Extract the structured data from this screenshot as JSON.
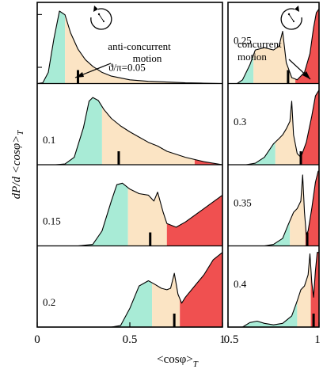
{
  "figure": {
    "ylabel": "dP/d <cosφ>",
    "ylabel_sub": "T",
    "xlabel": "<cosφ>",
    "xlabel_sub": "T"
  },
  "colors": {
    "region_low": "#a8ebd6",
    "region_mid": "#fbe4c4",
    "region_high": "#f05050",
    "line": "#000000"
  },
  "annotations": {
    "anti": [
      "anti-concurrent",
      "motion"
    ],
    "concurrent": [
      "concurrent",
      "motion"
    ]
  },
  "icons": {
    "left": "counterclockwise-rotation-icon",
    "right": "clockwise-rotation-icon"
  },
  "chart_data": [
    {
      "type": "area",
      "column": "left",
      "xlim": [
        0,
        1
      ],
      "x_ticks": [
        0,
        0.5,
        1
      ],
      "x_tick_labels": [
        "0",
        "0.5",
        "1"
      ],
      "panels": [
        {
          "label": "ϑ/π=0.05",
          "mean": 0.22,
          "split_low": 0.15,
          "split_high": 0.8,
          "x": [
            0.0,
            0.03,
            0.06,
            0.09,
            0.12,
            0.15,
            0.18,
            0.22,
            0.26,
            0.3,
            0.35,
            0.4,
            0.5,
            0.6,
            0.7,
            0.8,
            0.9,
            1.0
          ],
          "y": [
            0.0,
            0.01,
            0.15,
            0.6,
            0.97,
            0.92,
            0.68,
            0.46,
            0.32,
            0.23,
            0.15,
            0.1,
            0.05,
            0.03,
            0.02,
            0.01,
            0.005,
            0.0
          ]
        },
        {
          "label": "0.1",
          "mean": 0.44,
          "split_low": 0.35,
          "split_high": 0.85,
          "x": [
            0.0,
            0.1,
            0.15,
            0.2,
            0.25,
            0.28,
            0.3,
            0.33,
            0.36,
            0.4,
            0.45,
            0.5,
            0.55,
            0.6,
            0.65,
            0.7,
            0.8,
            0.9,
            1.0
          ],
          "y": [
            0.0,
            0.0,
            0.01,
            0.1,
            0.5,
            0.85,
            0.9,
            0.86,
            0.74,
            0.62,
            0.52,
            0.44,
            0.37,
            0.3,
            0.25,
            0.18,
            0.1,
            0.04,
            0.0
          ]
        },
        {
          "label": "0.15",
          "mean": 0.61,
          "split_low": 0.49,
          "split_high": 0.7,
          "x": [
            0.0,
            0.22,
            0.3,
            0.35,
            0.4,
            0.43,
            0.46,
            0.5,
            0.55,
            0.6,
            0.63,
            0.65,
            0.68,
            0.7,
            0.75,
            0.8,
            0.9,
            1.0
          ],
          "y": [
            0.0,
            0.0,
            0.02,
            0.2,
            0.6,
            0.82,
            0.84,
            0.76,
            0.7,
            0.68,
            0.6,
            0.72,
            0.45,
            0.3,
            0.25,
            0.32,
            0.5,
            0.68
          ]
        },
        {
          "label": "0.2",
          "mean": 0.74,
          "split_low": 0.62,
          "split_high": 0.77,
          "x": [
            0.0,
            0.4,
            0.45,
            0.5,
            0.55,
            0.6,
            0.63,
            0.67,
            0.7,
            0.72,
            0.74,
            0.76,
            0.78,
            0.8,
            0.85,
            0.9,
            0.95,
            1.0
          ],
          "y": [
            0.0,
            0.0,
            0.02,
            0.25,
            0.55,
            0.62,
            0.58,
            0.52,
            0.5,
            0.52,
            0.72,
            0.44,
            0.32,
            0.4,
            0.55,
            0.7,
            0.9,
            1.0
          ]
        }
      ]
    },
    {
      "type": "area",
      "column": "right",
      "xlim": [
        0.5,
        1
      ],
      "x_ticks": [
        0.5,
        1
      ],
      "x_tick_labels": [
        "0.5",
        "1"
      ],
      "panels": [
        {
          "label": "0.25",
          "mean": 0.83,
          "split_low": 0.64,
          "split_high": 0.87,
          "x": [
            0.5,
            0.55,
            0.58,
            0.62,
            0.65,
            0.7,
            0.75,
            0.78,
            0.8,
            0.82,
            0.85,
            0.88,
            0.92,
            0.95,
            0.97,
            0.985,
            1.0
          ],
          "y": [
            0.0,
            0.0,
            0.05,
            0.25,
            0.45,
            0.48,
            0.45,
            0.5,
            0.7,
            0.28,
            0.08,
            0.05,
            0.15,
            0.4,
            0.75,
            0.95,
            1.0
          ]
        },
        {
          "label": "0.3",
          "mean": 0.9,
          "split_low": 0.76,
          "split_high": 0.895,
          "x": [
            0.5,
            0.6,
            0.65,
            0.7,
            0.75,
            0.78,
            0.8,
            0.82,
            0.84,
            0.85,
            0.86,
            0.88,
            0.9,
            0.93,
            0.96,
            0.98,
            1.0
          ],
          "y": [
            0.0,
            0.0,
            0.02,
            0.1,
            0.28,
            0.35,
            0.4,
            0.48,
            0.58,
            0.85,
            0.4,
            0.15,
            0.1,
            0.3,
            0.65,
            0.92,
            1.0
          ]
        },
        {
          "label": "0.35",
          "mean": 0.935,
          "split_low": 0.84,
          "split_high": 0.925,
          "x": [
            0.5,
            0.7,
            0.75,
            0.8,
            0.83,
            0.86,
            0.88,
            0.9,
            0.91,
            0.92,
            0.93,
            0.94,
            0.96,
            0.98,
            0.995,
            1.0
          ],
          "y": [
            0.0,
            0.0,
            0.02,
            0.1,
            0.28,
            0.45,
            0.5,
            0.6,
            0.95,
            0.45,
            0.15,
            0.2,
            0.5,
            0.85,
            1.0,
            1.0
          ]
        },
        {
          "label": "0.4",
          "mean": 0.97,
          "split_low": 0.88,
          "split_high": 0.955,
          "x": [
            0.5,
            0.58,
            0.62,
            0.66,
            0.7,
            0.75,
            0.8,
            0.85,
            0.88,
            0.9,
            0.92,
            0.94,
            0.95,
            0.96,
            0.97,
            0.98,
            0.99,
            1.0
          ],
          "y": [
            0.0,
            0.0,
            0.06,
            0.08,
            0.05,
            0.03,
            0.05,
            0.15,
            0.35,
            0.5,
            0.55,
            0.7,
            0.98,
            0.6,
            0.4,
            0.75,
            1.0,
            1.0
          ]
        }
      ]
    }
  ]
}
